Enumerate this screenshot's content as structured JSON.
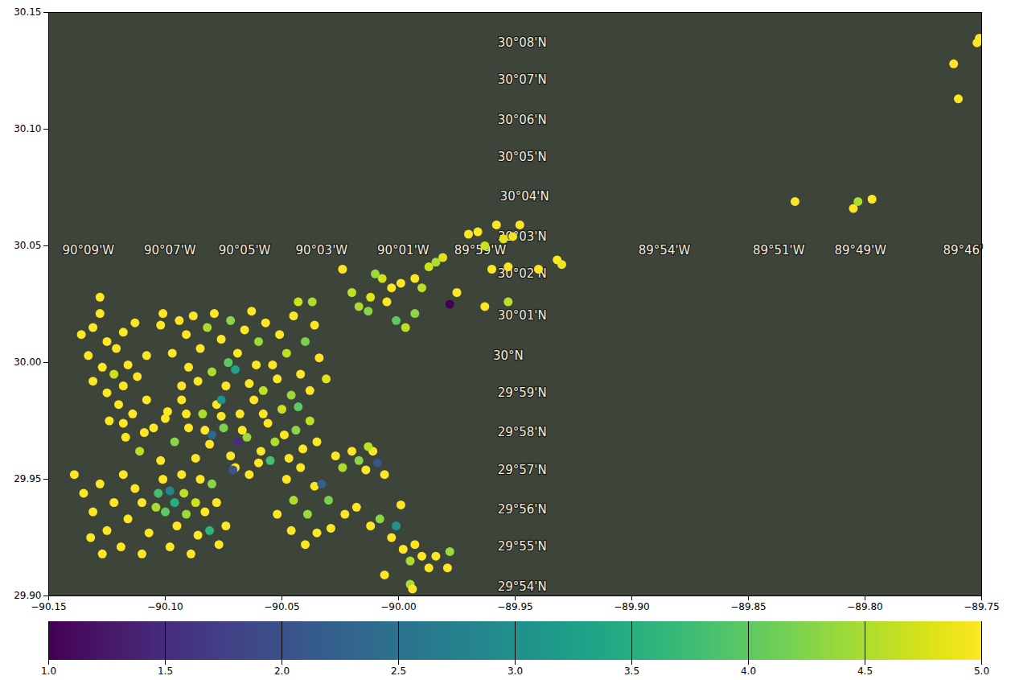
{
  "chart_data": {
    "type": "scatter",
    "color": "viridis",
    "xlim": [
      -90.15,
      -89.75
    ],
    "ylim": [
      29.9,
      30.15
    ],
    "xticks": [
      {
        "value": -90.15,
        "label": "−90.15"
      },
      {
        "value": -90.1,
        "label": "−90.10"
      },
      {
        "value": -90.05,
        "label": "−90.05"
      },
      {
        "value": -90.0,
        "label": "−90.00"
      },
      {
        "value": -89.95,
        "label": "−89.95"
      },
      {
        "value": -89.9,
        "label": "−89.90"
      },
      {
        "value": -89.85,
        "label": "−89.85"
      },
      {
        "value": -89.8,
        "label": "−89.80"
      },
      {
        "value": -89.75,
        "label": "−89.75"
      }
    ],
    "yticks": [
      {
        "value": 29.9,
        "label": "29.90"
      },
      {
        "value": 29.95,
        "label": "29.95"
      },
      {
        "value": 30.0,
        "label": "30.00"
      },
      {
        "value": 30.05,
        "label": "30.05"
      },
      {
        "value": 30.1,
        "label": "30.10"
      },
      {
        "value": 30.15,
        "label": "30.15"
      }
    ],
    "colorbar": {
      "range": [
        1,
        5
      ],
      "ticks": [
        {
          "value": 1,
          "label": "1.0"
        },
        {
          "value": 1.5,
          "label": "1.5"
        },
        {
          "value": 2,
          "label": "2.0"
        },
        {
          "value": 2.5,
          "label": "2.5"
        },
        {
          "value": 3,
          "label": "3.0"
        },
        {
          "value": 3.5,
          "label": "3.5"
        },
        {
          "value": 4,
          "label": "4.0"
        },
        {
          "value": 4.5,
          "label": "4.5"
        },
        {
          "value": 5,
          "label": "5.0"
        }
      ]
    },
    "map_labels": [
      {
        "text": "30°08'N",
        "x": -89.947,
        "y": 30.137
      },
      {
        "text": "30°07'N",
        "x": -89.947,
        "y": 30.121
      },
      {
        "text": "30°06'N",
        "x": -89.947,
        "y": 30.104
      },
      {
        "text": "30°05'N",
        "x": -89.947,
        "y": 30.088
      },
      {
        "text": "30°04'N",
        "x": -89.946,
        "y": 30.071
      },
      {
        "text": "30°03'N",
        "x": -89.947,
        "y": 30.054
      },
      {
        "text": "30°02'N",
        "x": -89.947,
        "y": 30.038
      },
      {
        "text": "30°01'N",
        "x": -89.947,
        "y": 30.02
      },
      {
        "text": "30°N",
        "x": -89.953,
        "y": 30.003
      },
      {
        "text": "29°59'N",
        "x": -89.947,
        "y": 29.987
      },
      {
        "text": "29°58'N",
        "x": -89.947,
        "y": 29.97
      },
      {
        "text": "29°57'N",
        "x": -89.947,
        "y": 29.954
      },
      {
        "text": "29°56'N",
        "x": -89.947,
        "y": 29.937
      },
      {
        "text": "29°55'N",
        "x": -89.947,
        "y": 29.921
      },
      {
        "text": "29°54'N",
        "x": -89.947,
        "y": 29.904
      },
      {
        "text": "90°09'W",
        "x": -90.133,
        "y": 30.048
      },
      {
        "text": "90°07'W",
        "x": -90.098,
        "y": 30.048
      },
      {
        "text": "90°05'W",
        "x": -90.066,
        "y": 30.048
      },
      {
        "text": "90°03'W",
        "x": -90.033,
        "y": 30.048
      },
      {
        "text": "90°01'W",
        "x": -89.998,
        "y": 30.048
      },
      {
        "text": "89°59'W",
        "x": -89.965,
        "y": 30.048
      },
      {
        "text": "89°54'W",
        "x": -89.886,
        "y": 30.048
      },
      {
        "text": "89°51'W",
        "x": -89.837,
        "y": 30.048
      },
      {
        "text": "89°49'W",
        "x": -89.802,
        "y": 30.048
      },
      {
        "text": "89°46'",
        "x": -89.758,
        "y": 30.048
      }
    ],
    "points": [
      [
        -90.136,
        30.012,
        5
      ],
      [
        -90.131,
        30.015,
        5
      ],
      [
        -90.128,
        30.021,
        5
      ],
      [
        -90.125,
        30.009,
        5
      ],
      [
        -90.133,
        30.003,
        5
      ],
      [
        -90.121,
        30.006,
        5
      ],
      [
        -90.118,
        30.013,
        5
      ],
      [
        -90.113,
        30.017,
        5
      ],
      [
        -90.108,
        30.003,
        5
      ],
      [
        -90.102,
        30.016,
        5
      ],
      [
        -90.101,
        30.021,
        5
      ],
      [
        -90.127,
        29.998,
        5
      ],
      [
        -90.131,
        29.992,
        5
      ],
      [
        -90.122,
        29.995,
        4.7
      ],
      [
        -90.116,
        29.999,
        5
      ],
      [
        -90.125,
        29.987,
        5
      ],
      [
        -90.118,
        29.99,
        5
      ],
      [
        -90.112,
        29.994,
        5
      ],
      [
        -90.128,
        30.028,
        5
      ],
      [
        -90.094,
        30.018,
        5
      ],
      [
        -90.091,
        30.012,
        5
      ],
      [
        -90.088,
        30.02,
        5
      ],
      [
        -90.085,
        30.006,
        5
      ],
      [
        -90.082,
        30.015,
        4.5
      ],
      [
        -90.079,
        30.021,
        5
      ],
      [
        -90.076,
        30.01,
        5
      ],
      [
        -90.072,
        30.018,
        4.3
      ],
      [
        -90.069,
        30.004,
        5
      ],
      [
        -90.066,
        30.014,
        5
      ],
      [
        -90.063,
        30.022,
        5
      ],
      [
        -90.06,
        30.009,
        4.4
      ],
      [
        -90.057,
        30.017,
        5
      ],
      [
        -90.054,
        29.999,
        5
      ],
      [
        -90.051,
        30.012,
        5
      ],
      [
        -90.048,
        30.004,
        4.6
      ],
      [
        -90.045,
        30.02,
        5
      ],
      [
        -90.042,
        29.995,
        5
      ],
      [
        -90.04,
        30.009,
        4.2
      ],
      [
        -90.037,
        30.026,
        4.5
      ],
      [
        -90.034,
        30.002,
        5
      ],
      [
        -90.031,
        29.993,
        4.8
      ],
      [
        -90.09,
        29.998,
        5
      ],
      [
        -90.086,
        29.992,
        5
      ],
      [
        -90.08,
        29.996,
        4.5
      ],
      [
        -90.074,
        29.99,
        5
      ],
      [
        -90.07,
        29.997,
        3.3
      ],
      [
        -90.064,
        29.991,
        5
      ],
      [
        -90.058,
        29.988,
        4.6
      ],
      [
        -90.052,
        29.993,
        5
      ],
      [
        -90.046,
        29.986,
        4.4
      ],
      [
        -90.038,
        29.988,
        5
      ],
      [
        -90.097,
        30.004,
        5
      ],
      [
        -90.093,
        29.99,
        5
      ],
      [
        -90.073,
        30.0,
        4.0
      ],
      [
        -90.061,
        29.999,
        5
      ],
      [
        -90.036,
        30.016,
        5
      ],
      [
        -90.043,
        30.026,
        4.7
      ],
      [
        -90.124,
        29.975,
        5
      ],
      [
        -90.12,
        29.982,
        5
      ],
      [
        -90.117,
        29.968,
        5
      ],
      [
        -90.114,
        29.978,
        5
      ],
      [
        -90.111,
        29.962,
        4.6
      ],
      [
        -90.108,
        29.984,
        5
      ],
      [
        -90.105,
        29.972,
        5
      ],
      [
        -90.102,
        29.958,
        5
      ],
      [
        -90.099,
        29.979,
        5
      ],
      [
        -90.096,
        29.966,
        4.3
      ],
      [
        -90.093,
        29.984,
        5
      ],
      [
        -90.09,
        29.972,
        5
      ],
      [
        -90.087,
        29.959,
        5
      ],
      [
        -90.084,
        29.978,
        4.5
      ],
      [
        -90.081,
        29.965,
        5
      ],
      [
        -90.078,
        29.982,
        5
      ],
      [
        -90.075,
        29.972,
        4.2
      ],
      [
        -90.072,
        29.96,
        5
      ],
      [
        -90.068,
        29.978,
        5
      ],
      [
        -90.065,
        29.968,
        4.4
      ],
      [
        -90.062,
        29.984,
        5
      ],
      [
        -90.059,
        29.962,
        5
      ],
      [
        -90.056,
        29.974,
        5
      ],
      [
        -90.053,
        29.966,
        4.5
      ],
      [
        -90.05,
        29.98,
        4.7
      ],
      [
        -90.047,
        29.959,
        5
      ],
      [
        -90.044,
        29.971,
        4.3
      ],
      [
        -90.041,
        29.963,
        5
      ],
      [
        -90.038,
        29.975,
        4.6
      ],
      [
        -90.035,
        29.966,
        5
      ],
      [
        -90.118,
        29.974,
        5
      ],
      [
        -90.109,
        29.97,
        5
      ],
      [
        -90.1,
        29.976,
        5
      ],
      [
        -90.091,
        29.978,
        5
      ],
      [
        -90.083,
        29.971,
        5
      ],
      [
        -90.076,
        29.977,
        5
      ],
      [
        -90.067,
        29.971,
        5
      ],
      [
        -90.058,
        29.978,
        5
      ],
      [
        -90.049,
        29.969,
        5
      ],
      [
        -90.06,
        29.957,
        5
      ],
      [
        -90.07,
        29.955,
        5
      ],
      [
        -90.064,
        29.952,
        5
      ],
      [
        -90.08,
        29.969,
        2.3
      ],
      [
        -90.069,
        29.966,
        1.5
      ],
      [
        -90.076,
        29.984,
        3.0
      ],
      [
        -90.043,
        29.981,
        4.0
      ],
      [
        -90.055,
        29.958,
        3.8
      ],
      [
        -90.139,
        29.952,
        5
      ],
      [
        -90.135,
        29.944,
        5
      ],
      [
        -90.131,
        29.936,
        5
      ],
      [
        -90.128,
        29.948,
        5
      ],
      [
        -90.125,
        29.928,
        5
      ],
      [
        -90.122,
        29.94,
        5
      ],
      [
        -90.119,
        29.921,
        5
      ],
      [
        -90.116,
        29.933,
        5
      ],
      [
        -90.113,
        29.946,
        5
      ],
      [
        -90.11,
        29.918,
        5
      ],
      [
        -90.107,
        29.927,
        5
      ],
      [
        -90.104,
        29.938,
        4.5
      ],
      [
        -90.101,
        29.95,
        5
      ],
      [
        -90.098,
        29.921,
        5
      ],
      [
        -90.095,
        29.93,
        5
      ],
      [
        -90.092,
        29.944,
        4.6
      ],
      [
        -90.089,
        29.918,
        5
      ],
      [
        -90.086,
        29.926,
        5
      ],
      [
        -90.083,
        29.936,
        5
      ],
      [
        -90.08,
        29.948,
        4.3
      ],
      [
        -90.077,
        29.922,
        5
      ],
      [
        -90.132,
        29.925,
        5
      ],
      [
        -90.127,
        29.918,
        5
      ],
      [
        -90.103,
        29.944,
        3.8
      ],
      [
        -90.1,
        29.936,
        4.0
      ],
      [
        -90.096,
        29.94,
        3.5
      ],
      [
        -90.091,
        29.935,
        4.4
      ],
      [
        -90.087,
        29.94,
        4.7
      ],
      [
        -90.098,
        29.945,
        2.8
      ],
      [
        -90.093,
        29.952,
        5
      ],
      [
        -90.085,
        29.95,
        5
      ],
      [
        -90.078,
        29.94,
        5
      ],
      [
        -90.074,
        29.93,
        5
      ],
      [
        -90.118,
        29.952,
        5
      ],
      [
        -90.11,
        29.94,
        5
      ],
      [
        -90.071,
        29.954,
        2.0
      ],
      [
        -90.081,
        29.928,
        3.6
      ],
      [
        -90.048,
        29.95,
        5
      ],
      [
        -90.045,
        29.941,
        4.5
      ],
      [
        -90.042,
        29.955,
        5
      ],
      [
        -90.039,
        29.935,
        4.4
      ],
      [
        -90.036,
        29.947,
        5
      ],
      [
        -90.033,
        29.948,
        2.2
      ],
      [
        -90.03,
        29.941,
        4.2
      ],
      [
        -90.027,
        29.96,
        5
      ],
      [
        -90.024,
        29.955,
        4.5
      ],
      [
        -90.02,
        29.962,
        5
      ],
      [
        -90.017,
        29.958,
        4.3
      ],
      [
        -90.014,
        29.954,
        5
      ],
      [
        -90.011,
        29.962,
        5
      ],
      [
        -90.009,
        29.957,
        2.0
      ],
      [
        -90.006,
        29.952,
        5
      ],
      [
        -90.013,
        29.964,
        4.6
      ],
      [
        -90.052,
        29.935,
        5
      ],
      [
        -90.046,
        29.928,
        5
      ],
      [
        -90.04,
        29.922,
        5
      ],
      [
        -90.035,
        29.927,
        5
      ],
      [
        -90.023,
        29.935,
        5
      ],
      [
        -90.018,
        29.938,
        5
      ],
      [
        -90.012,
        29.93,
        5
      ],
      [
        -90.008,
        29.933,
        4.3
      ],
      [
        -90.003,
        29.925,
        5
      ],
      [
        -90.001,
        29.93,
        3.0
      ],
      [
        -89.998,
        29.92,
        5
      ],
      [
        -89.995,
        29.915,
        4.5
      ],
      [
        -89.993,
        29.922,
        5
      ],
      [
        -89.99,
        29.917,
        5
      ],
      [
        -89.987,
        29.912,
        5
      ],
      [
        -89.984,
        29.917,
        5
      ],
      [
        -89.979,
        29.912,
        5
      ],
      [
        -89.978,
        29.919,
        4.4
      ],
      [
        -90.006,
        29.909,
        5
      ],
      [
        -89.995,
        29.905,
        4.5
      ],
      [
        -89.994,
        29.903,
        5
      ],
      [
        -89.999,
        29.939,
        5
      ],
      [
        -90.029,
        29.929,
        5
      ],
      [
        -90.024,
        30.04,
        5
      ],
      [
        -90.02,
        30.03,
        4.6
      ],
      [
        -90.017,
        30.024,
        4.5
      ],
      [
        -90.013,
        30.022,
        4.3
      ],
      [
        -90.01,
        30.038,
        4.4
      ],
      [
        -90.007,
        30.036,
        4.7
      ],
      [
        -90.003,
        30.032,
        5
      ],
      [
        -90.001,
        30.018,
        4.0
      ],
      [
        -89.999,
        30.034,
        5
      ],
      [
        -89.997,
        30.015,
        4.6
      ],
      [
        -89.993,
        30.036,
        5
      ],
      [
        -89.99,
        30.032,
        4.6
      ],
      [
        -89.987,
        30.041,
        4.7
      ],
      [
        -89.984,
        30.043,
        4.5
      ],
      [
        -89.981,
        30.045,
        4.8
      ],
      [
        -89.978,
        30.025,
        1.0
      ],
      [
        -89.975,
        30.03,
        5
      ],
      [
        -89.97,
        30.055,
        5
      ],
      [
        -89.966,
        30.056,
        5
      ],
      [
        -89.963,
        30.05,
        4.7
      ],
      [
        -89.958,
        30.059,
        5
      ],
      [
        -89.955,
        30.053,
        4.8
      ],
      [
        -89.951,
        30.054,
        4.9
      ],
      [
        -89.948,
        30.059,
        5
      ],
      [
        -89.953,
        30.026,
        4.6
      ],
      [
        -89.963,
        30.024,
        5
      ],
      [
        -89.96,
        30.04,
        5
      ],
      [
        -89.953,
        30.041,
        5
      ],
      [
        -89.94,
        30.04,
        5
      ],
      [
        -89.932,
        30.044,
        5
      ],
      [
        -89.93,
        30.042,
        4.9
      ],
      [
        -89.993,
        30.021,
        4.3
      ],
      [
        -90.012,
        30.028,
        4.8
      ],
      [
        -90.005,
        30.026,
        5
      ],
      [
        -89.83,
        30.069,
        5
      ],
      [
        -89.805,
        30.066,
        5
      ],
      [
        -89.803,
        30.069,
        4.5
      ],
      [
        -89.797,
        30.07,
        5
      ],
      [
        -89.762,
        30.128,
        5
      ],
      [
        -89.76,
        30.113,
        5
      ],
      [
        -89.752,
        30.137,
        5
      ],
      [
        -89.751,
        30.139,
        5
      ]
    ]
  }
}
